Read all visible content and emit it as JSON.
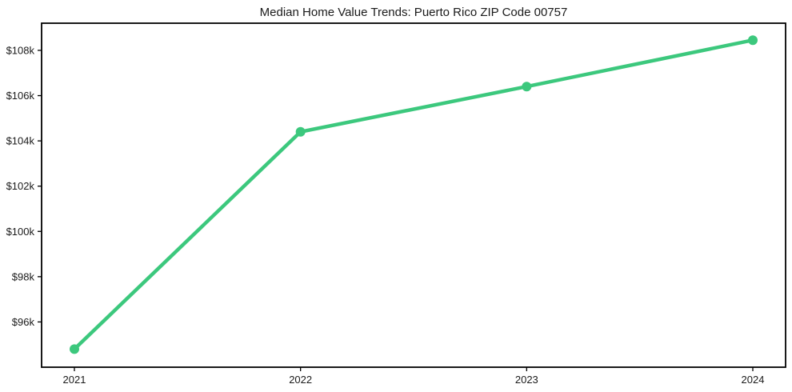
{
  "page": {
    "background_color": "#ffffff"
  },
  "chart_data": {
    "type": "line",
    "title": "Median Home Value Trends: Puerto Rico ZIP Code 00757",
    "xlabel": "",
    "ylabel": "",
    "categories": [
      "2021",
      "2022",
      "2023",
      "2024"
    ],
    "series": [
      {
        "name": "Median Home Value",
        "values": [
          94800,
          104400,
          106400,
          108450
        ]
      }
    ],
    "ylim": [
      94000,
      109200
    ],
    "yticks": [
      {
        "value": 96000,
        "label": "$96k"
      },
      {
        "value": 98000,
        "label": "$98k"
      },
      {
        "value": 100000,
        "label": "$100k"
      },
      {
        "value": 102000,
        "label": "$102k"
      },
      {
        "value": 104000,
        "label": "$104k"
      },
      {
        "value": 106000,
        "label": "$106k"
      },
      {
        "value": 108000,
        "label": "$108k"
      }
    ],
    "grid": false,
    "legend": "none",
    "line_color": "#3cc87d",
    "marker_color": "#3cc87d",
    "axis_color": "#000000",
    "text_color": "#1a1a1a"
  }
}
